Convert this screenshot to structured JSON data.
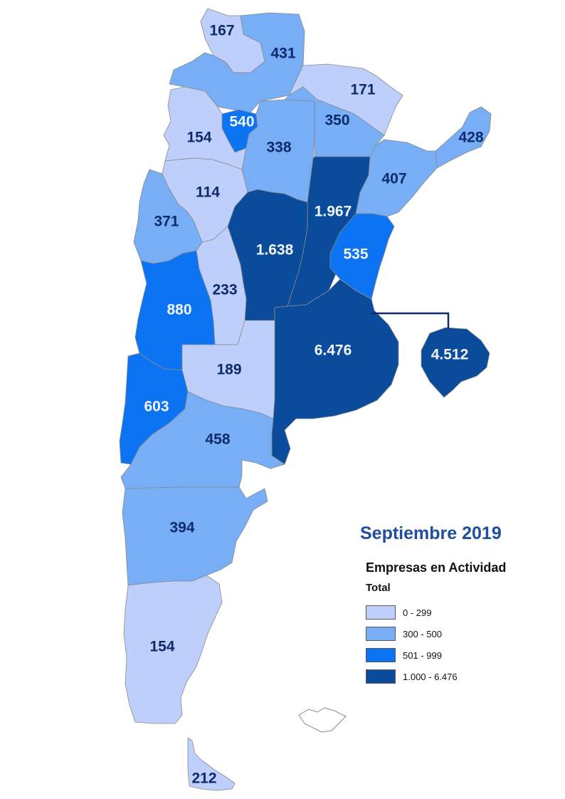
{
  "title": "Septiembre 2019",
  "legend": {
    "subtitle": "Empresas en Actividad",
    "field": "Total",
    "classes": [
      {
        "label": "0 - 299",
        "color": "#bfcffb"
      },
      {
        "label": "300 - 500",
        "color": "#77aef6"
      },
      {
        "label": "501 - 999",
        "color": "#0c74f2"
      },
      {
        "label": "1.000 - 6.476",
        "color": "#0a4c9b"
      }
    ]
  },
  "regions": [
    {
      "name": "Jujuy",
      "value": "167",
      "class": 0
    },
    {
      "name": "Salta",
      "value": "431",
      "class": 1
    },
    {
      "name": "Formosa",
      "value": "171",
      "class": 0
    },
    {
      "name": "Tucumán",
      "value": "540",
      "class": 2
    },
    {
      "name": "Catamarca",
      "value": "154",
      "class": 0
    },
    {
      "name": "Santiago del Estero",
      "value": "338",
      "class": 1
    },
    {
      "name": "Chaco",
      "value": "350",
      "class": 1
    },
    {
      "name": "Misiones",
      "value": "428",
      "class": 1
    },
    {
      "name": "Corrientes",
      "value": "407",
      "class": 1
    },
    {
      "name": "La Rioja",
      "value": "114",
      "class": 0
    },
    {
      "name": "Santa Fe",
      "value": "1.967",
      "class": 3
    },
    {
      "name": "San Juan",
      "value": "371",
      "class": 1
    },
    {
      "name": "Córdoba",
      "value": "1.638",
      "class": 3
    },
    {
      "name": "Entre Ríos",
      "value": "535",
      "class": 2
    },
    {
      "name": "San Luis",
      "value": "233",
      "class": 0
    },
    {
      "name": "Mendoza",
      "value": "880",
      "class": 2
    },
    {
      "name": "Buenos Aires",
      "value": "6.476",
      "class": 3
    },
    {
      "name": "CABA",
      "value": "4.512",
      "class": 3
    },
    {
      "name": "La Pampa",
      "value": "189",
      "class": 0
    },
    {
      "name": "Neuquén",
      "value": "603",
      "class": 2
    },
    {
      "name": "Río Negro",
      "value": "458",
      "class": 1
    },
    {
      "name": "Chubut",
      "value": "394",
      "class": 1
    },
    {
      "name": "Santa Cruz",
      "value": "154",
      "class": 0
    },
    {
      "name": "Tierra del Fuego",
      "value": "212",
      "class": 0
    }
  ]
}
